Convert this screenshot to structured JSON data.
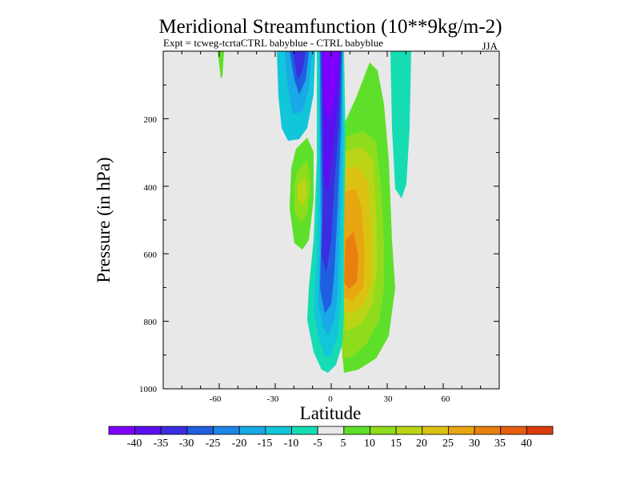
{
  "chart_data": {
    "type": "heatmap",
    "title": "Meridional Streamfunction (10**9kg/m-2)",
    "subtitle": "Expt = tcweg-tcrtaCTRL babyblue - CTRL babyblue",
    "season": "JJA",
    "xlabel": "Latitude",
    "ylabel": "Pressure (in hPa)",
    "xlim": [
      -90,
      90
    ],
    "ylim": [
      1000,
      0
    ],
    "x_ticks": [
      -60,
      -30,
      0,
      30,
      60
    ],
    "x_tick_labels": [
      "-60",
      "-30",
      "0",
      "30",
      "60"
    ],
    "y_ticks": [
      200,
      400,
      600,
      800,
      1000
    ],
    "y_tick_labels": [
      "200",
      "400",
      "600",
      "800",
      "1000"
    ],
    "colorbar": {
      "labels": [
        "-40",
        "-35",
        "-30",
        "-25",
        "-20",
        "-15",
        "-10",
        "-5",
        "5",
        "10",
        "15",
        "20",
        "25",
        "30",
        "35",
        "40"
      ],
      "colors": [
        "#7f00ff",
        "#5a10f0",
        "#3a2ee0",
        "#1f5fe0",
        "#1b86e6",
        "#18a9e6",
        "#12c6d9",
        "#16dcb4",
        "#e8e8e8",
        "#5ee02a",
        "#8fdc1c",
        "#bcd416",
        "#dcc210",
        "#e8a612",
        "#e88010",
        "#e46010",
        "#dc3c0c"
      ]
    },
    "contour_fields": [
      {
        "name": "upper-left-cyan-lobe",
        "level": "-10",
        "lat_range": [
          -27,
          -16
        ],
        "pressure_range": [
          0,
          300
        ]
      },
      {
        "name": "upper-left-blue-core",
        "level": "-25",
        "lat_range": [
          -23,
          -19
        ],
        "pressure_range": [
          0,
          100
        ]
      },
      {
        "name": "equatorial-negative-column",
        "level": "-40",
        "lat_range": [
          -6,
          6
        ],
        "pressure_range": [
          0,
          1000
        ]
      },
      {
        "name": "left-green-lobe",
        "level": "10",
        "lat_range": [
          -20,
          -10
        ],
        "pressure_range": [
          270,
          590
        ]
      },
      {
        "name": "tropical-positive-column",
        "level": "30",
        "lat_range": [
          4,
          24
        ],
        "pressure_range": [
          60,
          950
        ]
      },
      {
        "name": "right-cyan-column",
        "level": "-5",
        "lat_range": [
          32,
          42
        ],
        "pressure_range": [
          0,
          400
        ]
      },
      {
        "name": "far-left-green-spot",
        "level": "10",
        "lat_range": [
          -58,
          -56
        ],
        "pressure_range": [
          0,
          30
        ]
      }
    ]
  }
}
